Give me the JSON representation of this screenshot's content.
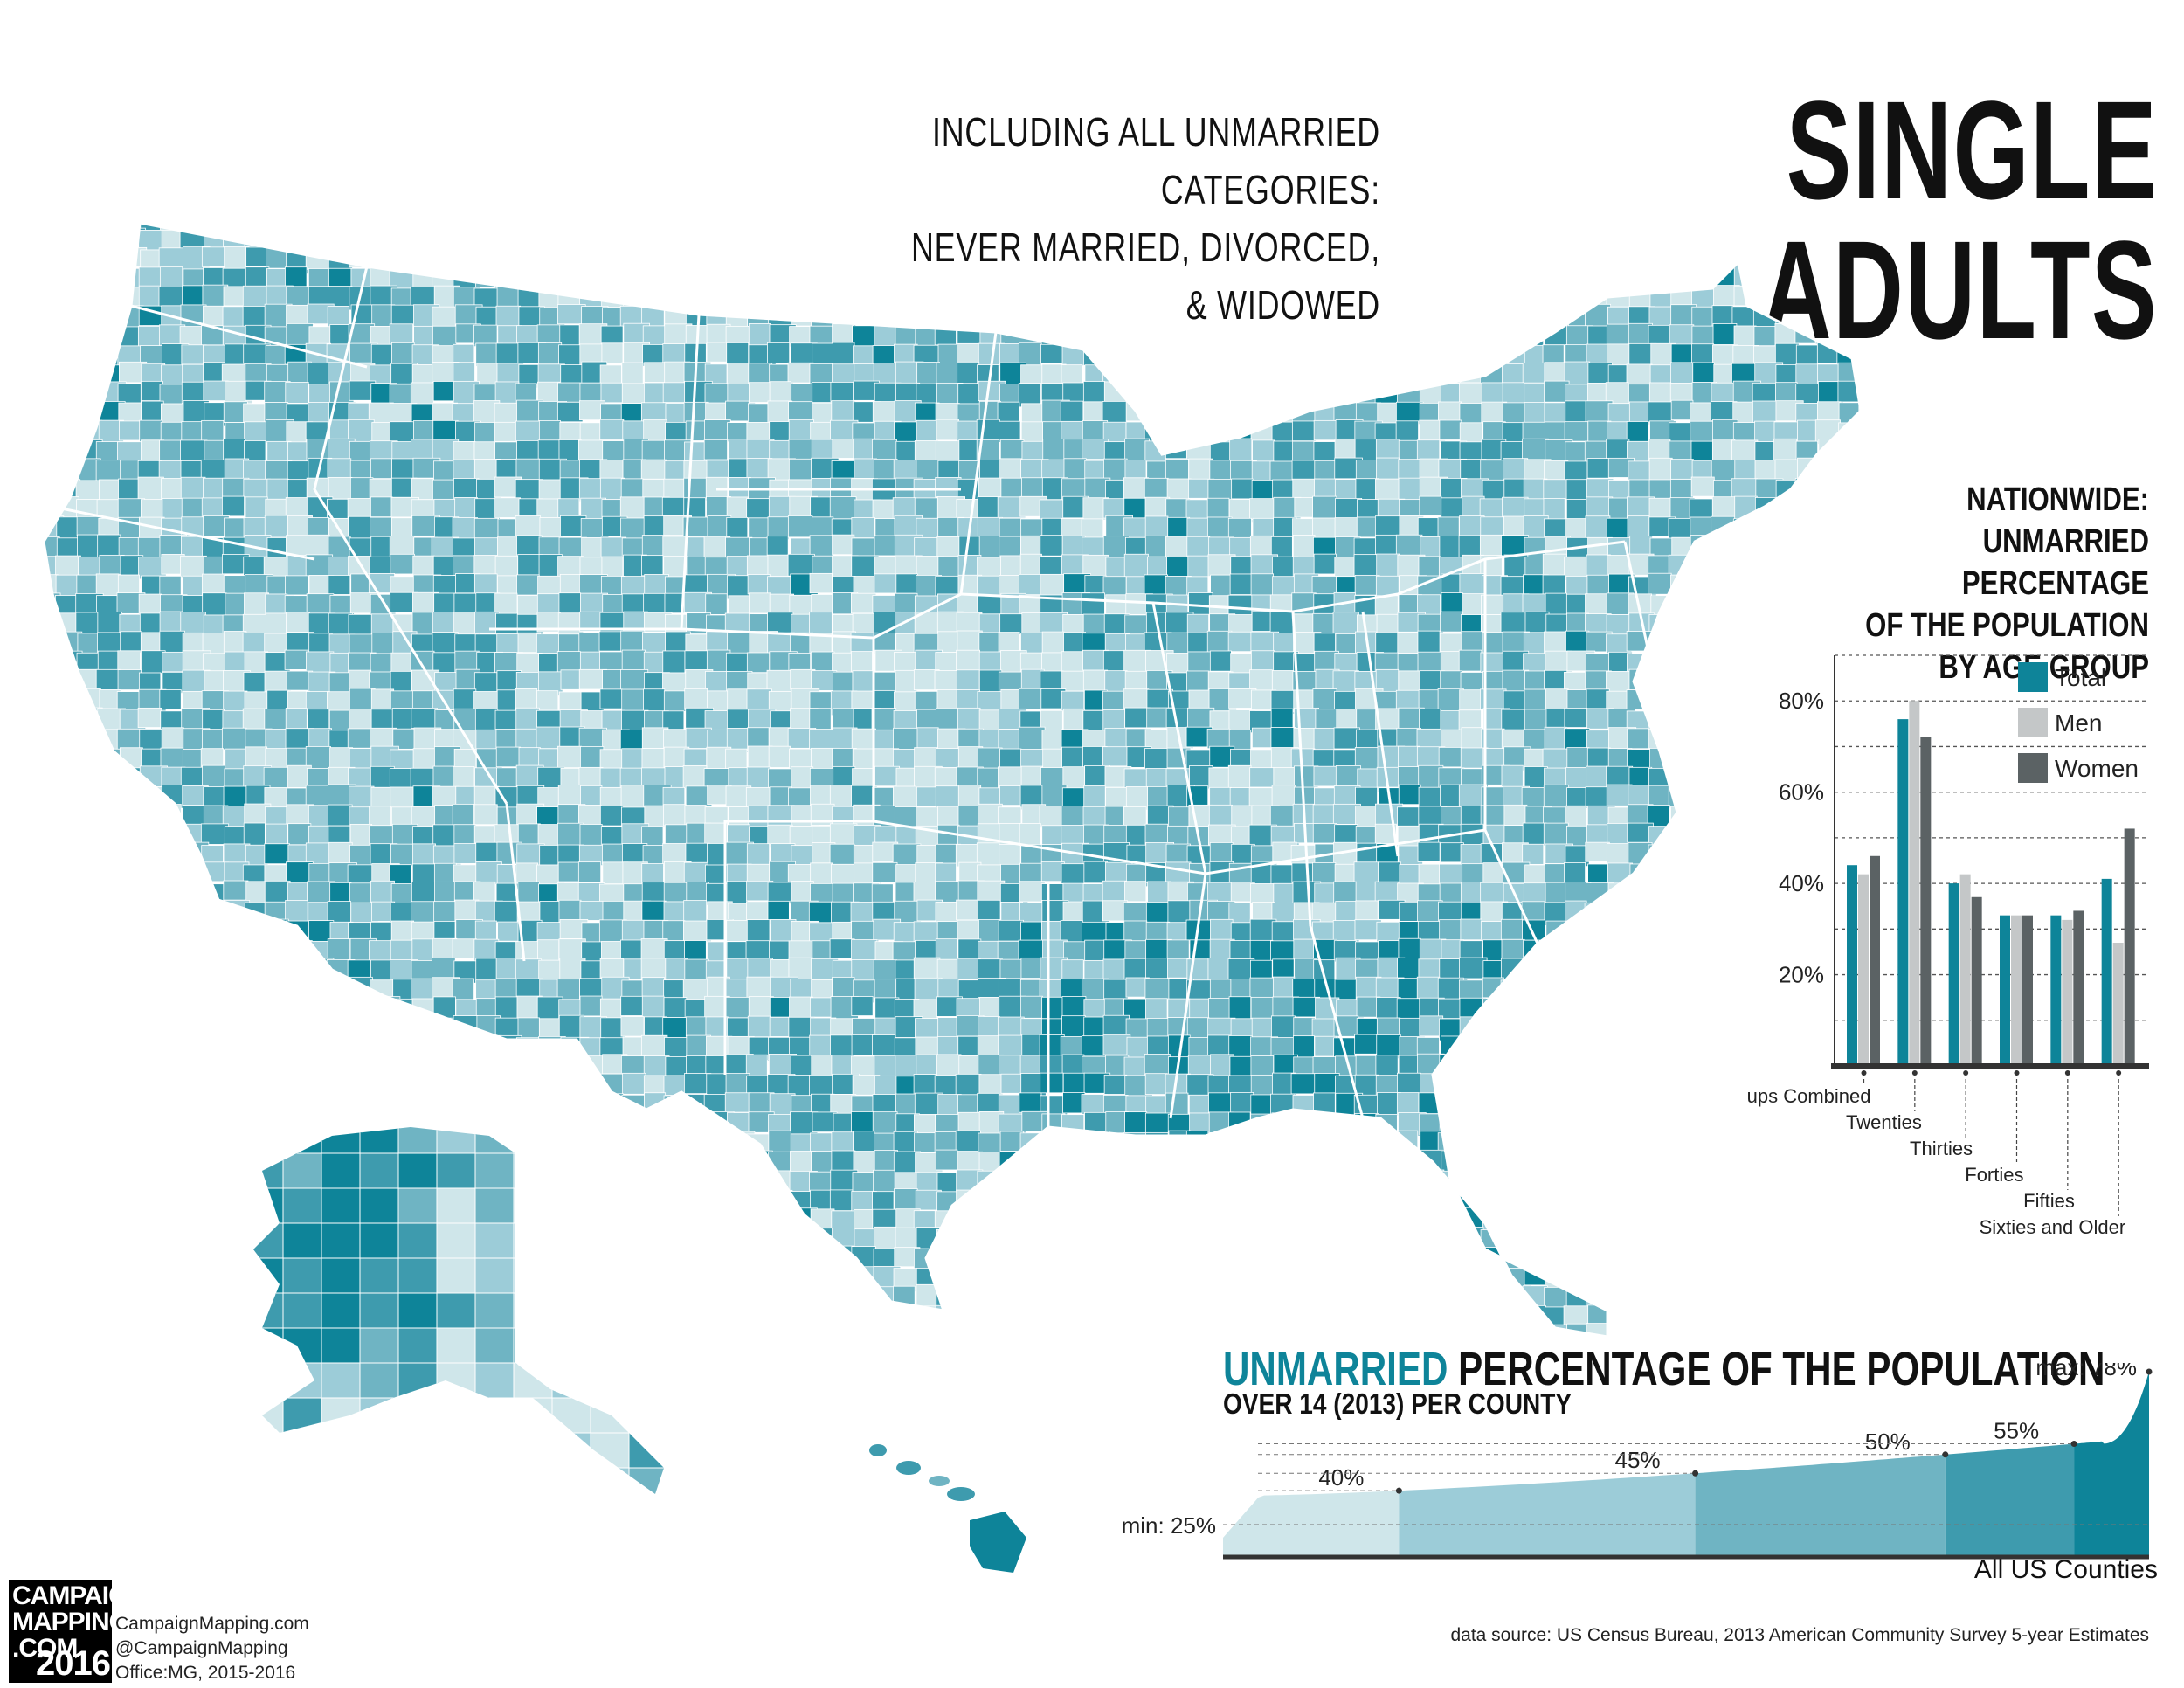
{
  "header": {
    "subtitle_line1": "INCLUDING ALL UNMARRIED CATEGORIES:",
    "subtitle_line2": "NEVER MARRIED, DIVORCED, & WIDOWED",
    "title": "SINGLE ADULTS"
  },
  "colors": {
    "scale": [
      "#cfe6ea",
      "#9cccd8",
      "#6fb4c3",
      "#3e9bae",
      "#0e8499"
    ],
    "men": "#c4c7c8",
    "women": "#5b6264",
    "axis": "#333333",
    "state_border": "#ffffff"
  },
  "chart_data": [
    {
      "type": "bar",
      "title": "NATIONWIDE: UNMARRIED PERCENTAGE OF THE POPULATION BY AGE GROUP",
      "title_lines": [
        "NATIONWIDE:",
        "UNMARRIED PERCENTAGE",
        "OF THE POPULATION",
        "BY AGE GROUP"
      ],
      "categories": [
        "Age Groups Combined",
        "Twenties",
        "Thirties",
        "Forties",
        "Fifties",
        "Sixties and Older"
      ],
      "series": [
        {
          "name": "Total",
          "values": [
            44,
            76,
            40,
            33,
            33,
            41
          ]
        },
        {
          "name": "Men",
          "values": [
            42,
            80,
            42,
            33,
            32,
            27
          ]
        },
        {
          "name": "Women",
          "values": [
            46,
            72,
            37,
            33,
            34,
            52
          ]
        }
      ],
      "y_ticks": [
        "20%",
        "40%",
        "60%",
        "80%"
      ],
      "y_tick_values": [
        20,
        40,
        60,
        80
      ],
      "ylim": [
        0,
        90
      ],
      "legend_position": "top-right",
      "grid": true
    },
    {
      "type": "area",
      "title_highlight": "UNMARRIED",
      "title_rest": "PERCENTAGE OF THE POPULATION",
      "subtitle": "OVER 14 (2013) PER COUNTY",
      "xlabel": "All US Counties",
      "min_label": "min: 25%",
      "max_label": "max: 78%",
      "marks": [
        {
          "label": "40%",
          "value": 40,
          "fraction": 0.19
        },
        {
          "label": "45%",
          "value": 45,
          "fraction": 0.51
        },
        {
          "label": "50%",
          "value": 50,
          "fraction": 0.78
        },
        {
          "label": "55%",
          "value": 55,
          "fraction": 0.919
        }
      ],
      "min": 25,
      "max": 78,
      "ylim": [
        25,
        78
      ]
    }
  ],
  "map": {
    "description_classes": 5,
    "regions": [
      "Alaska",
      "Hawaii",
      "Contiguous US"
    ]
  },
  "footer": {
    "logo_lines": [
      "CAMPAIGN",
      "MAPPING",
      ".COM"
    ],
    "logo_year": "2016",
    "credit1": "CampaignMapping.com",
    "credit2": "@CampaignMapping",
    "credit3": "Office:MG, 2015-2016",
    "source": "data source: US Census Bureau, 2013 American Community Survey 5-year Estimates"
  }
}
